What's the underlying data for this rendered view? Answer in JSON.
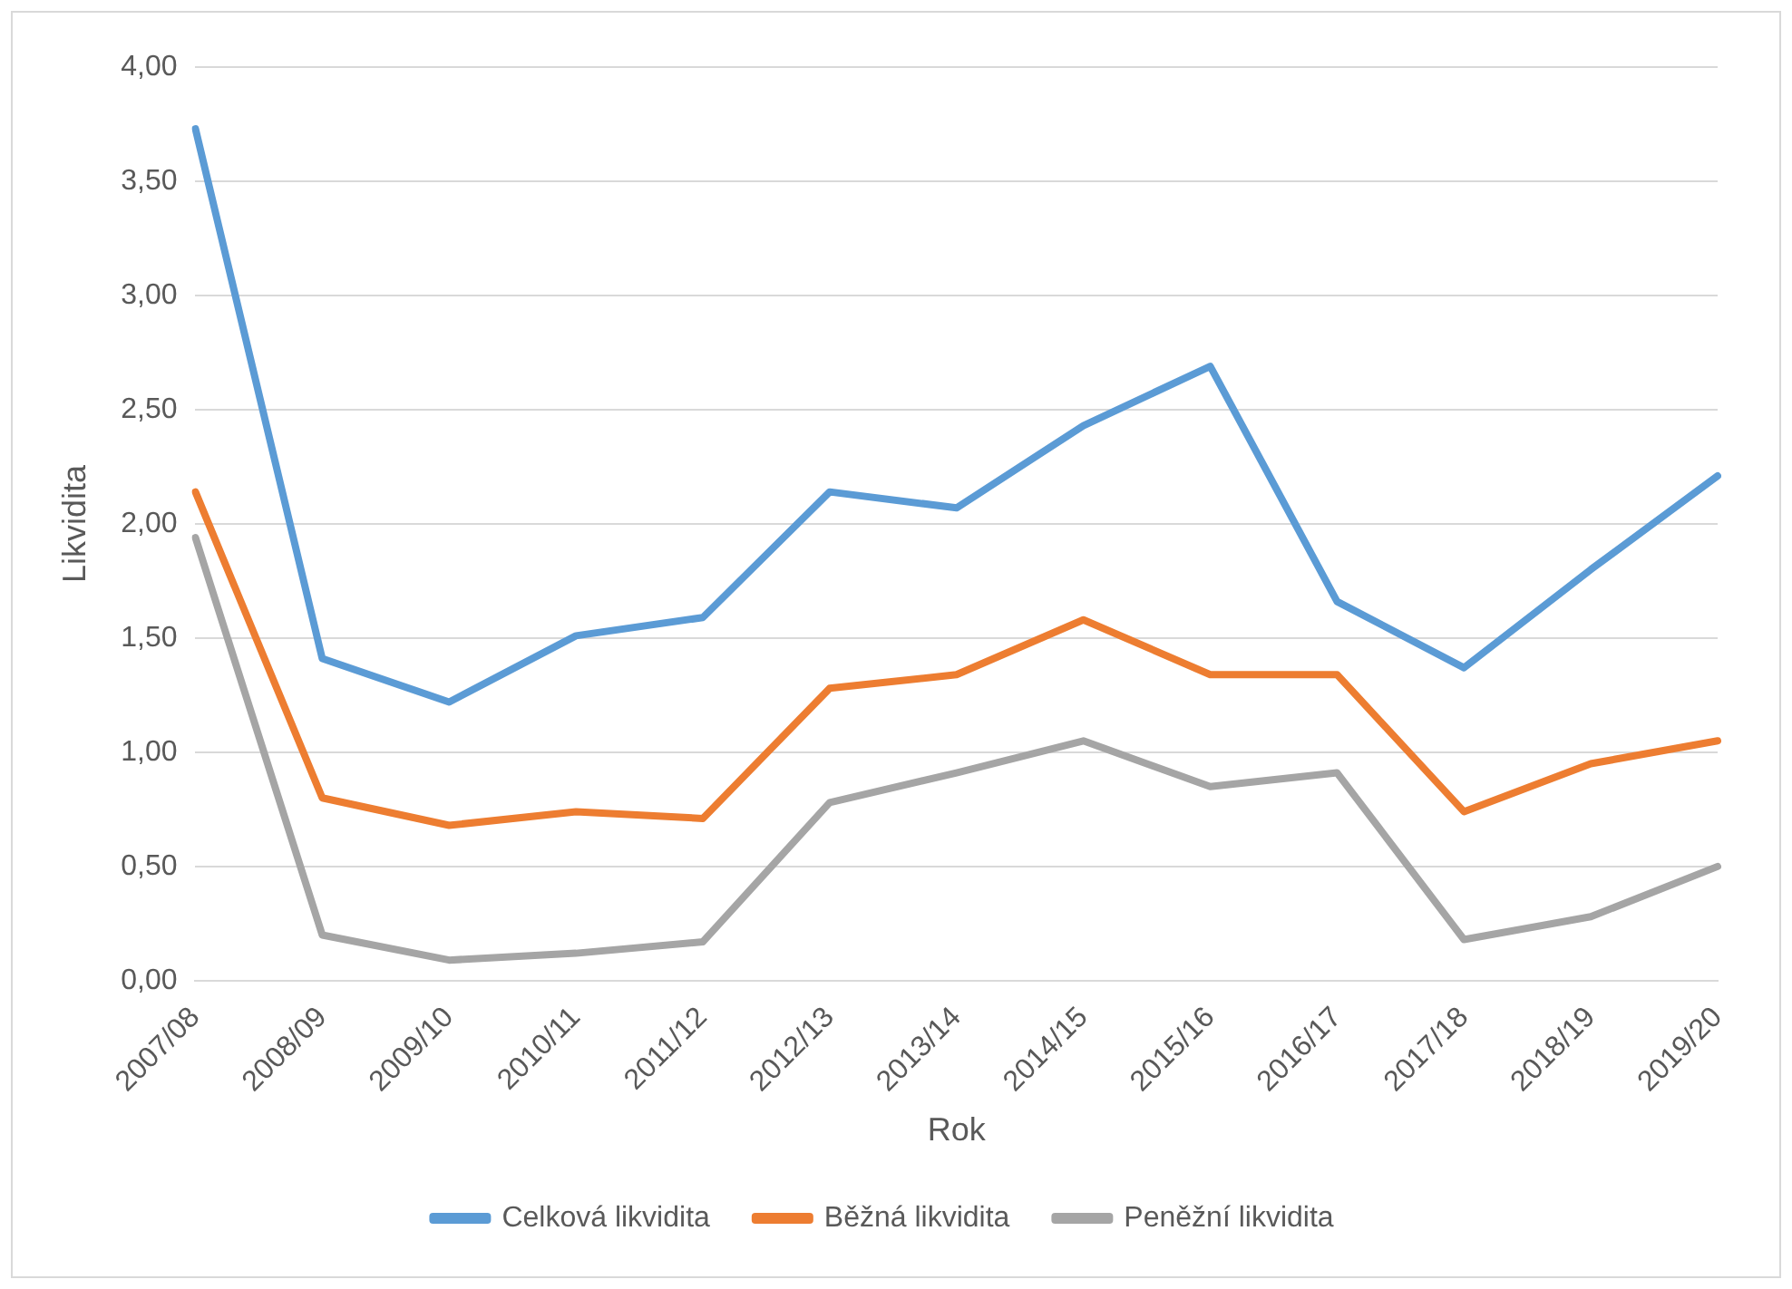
{
  "chart_data": {
    "type": "line",
    "xlabel": "Rok",
    "ylabel": "Likvidita",
    "categories": [
      "2007/08",
      "2008/09",
      "2009/10",
      "2010/11",
      "2011/12",
      "2012/13",
      "2013/14",
      "2014/15",
      "2015/16",
      "2016/17",
      "2017/18",
      "2018/19",
      "2019/20"
    ],
    "series": [
      {
        "name": "Celková likvidita",
        "color": "#5b9bd5",
        "values": [
          3.73,
          1.41,
          1.22,
          1.51,
          1.59,
          2.14,
          2.07,
          2.43,
          2.69,
          1.66,
          1.37,
          1.8,
          2.21
        ]
      },
      {
        "name": "Běžná likvidita",
        "color": "#ed7d31",
        "values": [
          2.14,
          0.8,
          0.68,
          0.74,
          0.71,
          1.28,
          1.34,
          1.58,
          1.34,
          1.34,
          0.74,
          0.95,
          1.05
        ]
      },
      {
        "name": "Peněžní likvidita",
        "color": "#a5a5a5",
        "values": [
          1.94,
          0.2,
          0.09,
          0.12,
          0.17,
          0.78,
          0.91,
          1.05,
          0.85,
          0.91,
          0.18,
          0.28,
          0.5
        ]
      }
    ],
    "ylim": [
      0,
      4
    ],
    "yticks": [
      {
        "value": 0,
        "label": "0,00"
      },
      {
        "value": 0.5,
        "label": "0,50"
      },
      {
        "value": 1,
        "label": "1,00"
      },
      {
        "value": 1.5,
        "label": "1,50"
      },
      {
        "value": 2,
        "label": "2,00"
      },
      {
        "value": 2.5,
        "label": "2,50"
      },
      {
        "value": 3,
        "label": "3,00"
      },
      {
        "value": 3.5,
        "label": "3,50"
      },
      {
        "value": 4,
        "label": "4,00"
      }
    ],
    "grid": "y",
    "legend": "bottom",
    "marker": "none",
    "line_style": "solid"
  }
}
